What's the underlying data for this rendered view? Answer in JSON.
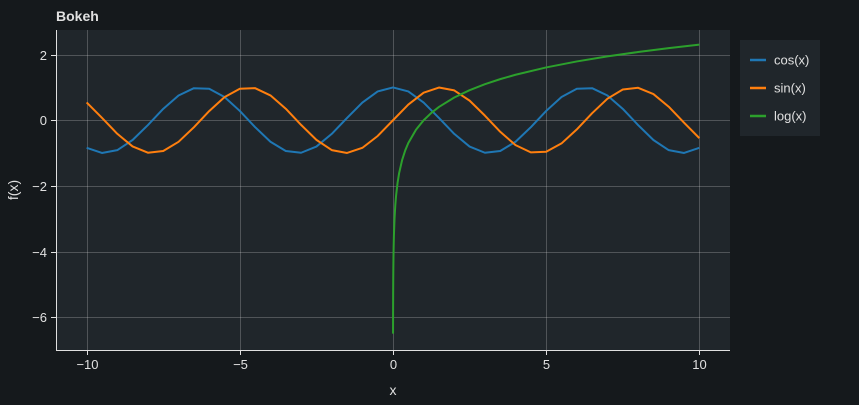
{
  "chart_data": {
    "type": "line",
    "title": "Bokeh",
    "xlabel": "x",
    "ylabel": "f(x)",
    "xlim": [
      -11,
      11
    ],
    "ylim": [
      -7.0,
      2.75
    ],
    "xticks": [
      -10,
      -5,
      0,
      5,
      10
    ],
    "yticks": [
      2,
      0,
      -2,
      -4,
      -6
    ],
    "xtick_labels": [
      "−10",
      "−5",
      "0",
      "5",
      "10"
    ],
    "ytick_labels": [
      "2",
      "0",
      "−2",
      "−4",
      "−6"
    ],
    "grid": true,
    "legend_position": "top-right",
    "series": [
      {
        "name": "cos(x)",
        "color": "#1f77b4",
        "x": [
          -10,
          -9.5,
          -9,
          -8.5,
          -8,
          -7.5,
          -7,
          -6.5,
          -6,
          -5.5,
          -5,
          -4.5,
          -4,
          -3.5,
          -3,
          -2.5,
          -2,
          -1.5,
          -1,
          -0.5,
          0,
          0.5,
          1,
          1.5,
          2,
          2.5,
          3,
          3.5,
          4,
          4.5,
          5,
          5.5,
          6,
          6.5,
          7,
          7.5,
          8,
          8.5,
          9,
          9.5,
          10
        ],
        "y": [
          -0.839,
          -0.997,
          -0.911,
          -0.602,
          -0.146,
          0.347,
          0.754,
          0.977,
          0.96,
          0.709,
          0.284,
          -0.211,
          -0.654,
          -0.936,
          -0.99,
          -0.801,
          -0.416,
          0.071,
          0.54,
          0.878,
          1.0,
          0.878,
          0.54,
          0.071,
          -0.416,
          -0.801,
          -0.99,
          -0.936,
          -0.654,
          -0.211,
          0.284,
          0.709,
          0.96,
          0.977,
          0.754,
          0.347,
          -0.146,
          -0.602,
          -0.911,
          -0.997,
          -0.839
        ]
      },
      {
        "name": "sin(x)",
        "color": "#ff7f0e",
        "x": [
          -10,
          -9.5,
          -9,
          -8.5,
          -8,
          -7.5,
          -7,
          -6.5,
          -6,
          -5.5,
          -5,
          -4.5,
          -4,
          -3.5,
          -3,
          -2.5,
          -2,
          -1.5,
          -1,
          -0.5,
          0,
          0.5,
          1,
          1.5,
          2,
          2.5,
          3,
          3.5,
          4,
          4.5,
          5,
          5.5,
          6,
          6.5,
          7,
          7.5,
          8,
          8.5,
          9,
          9.5,
          10
        ],
        "y": [
          0.544,
          0.075,
          -0.412,
          -0.798,
          -0.989,
          -0.938,
          -0.657,
          -0.215,
          0.279,
          0.706,
          0.959,
          0.978,
          0.757,
          0.351,
          -0.141,
          -0.598,
          -0.909,
          -0.997,
          -0.841,
          -0.479,
          0.0,
          0.479,
          0.841,
          0.997,
          0.909,
          0.598,
          0.141,
          -0.351,
          -0.757,
          -0.978,
          -0.959,
          -0.706,
          -0.279,
          0.215,
          0.657,
          0.938,
          0.989,
          0.798,
          0.412,
          -0.075,
          -0.544
        ]
      },
      {
        "name": "log(x)",
        "color": "#2ca02c",
        "x": [
          0.0015,
          0.002,
          0.003,
          0.005,
          0.0075,
          0.01,
          0.015,
          0.02,
          0.03,
          0.05,
          0.075,
          0.1,
          0.15,
          0.2,
          0.3,
          0.4,
          0.5,
          0.75,
          1,
          1.25,
          1.5,
          2,
          2.5,
          3,
          3.5,
          4,
          5,
          6,
          7,
          8,
          9,
          10
        ],
        "y": [
          -6.502,
          -6.215,
          -5.809,
          -5.298,
          -4.893,
          -4.605,
          -4.2,
          -3.912,
          -3.507,
          -2.996,
          -2.59,
          -2.303,
          -1.897,
          -1.609,
          -1.204,
          -0.916,
          -0.693,
          -0.288,
          0.0,
          0.223,
          0.405,
          0.693,
          0.916,
          1.099,
          1.253,
          1.386,
          1.609,
          1.792,
          1.946,
          2.079,
          2.197,
          2.303
        ]
      }
    ]
  }
}
